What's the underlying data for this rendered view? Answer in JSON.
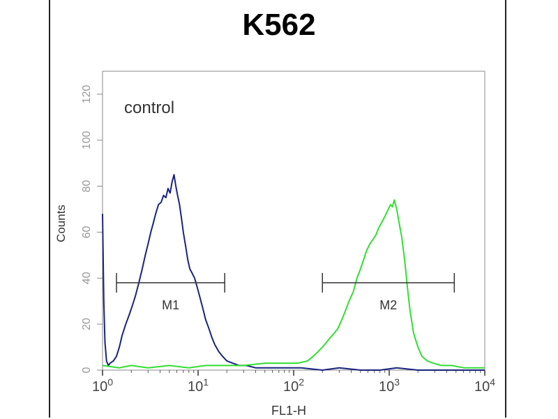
{
  "chart_data": {
    "type": "line",
    "title": "K562",
    "xlabel": "FL1-H",
    "ylabel": "Counts",
    "x_scale": "log",
    "xlim": [
      1,
      10000
    ],
    "ylim": [
      0,
      130
    ],
    "x_ticks": [
      {
        "value": 1,
        "base": "10",
        "exp": "0"
      },
      {
        "value": 10,
        "base": "10",
        "exp": "1"
      },
      {
        "value": 100,
        "base": "10",
        "exp": "2"
      },
      {
        "value": 1000,
        "base": "10",
        "exp": "3"
      },
      {
        "value": 10000,
        "base": "10",
        "exp": "4"
      }
    ],
    "y_ticks": [
      0,
      20,
      40,
      60,
      80,
      100,
      120
    ],
    "annotations": [
      {
        "text": "control"
      }
    ],
    "gates": [
      {
        "label": "M1",
        "x_start": 1.4,
        "x_end": 19,
        "y": 38
      },
      {
        "label": "M2",
        "x_start": 200,
        "x_end": 4800,
        "y": 38
      }
    ],
    "series": [
      {
        "color": "#1a237e",
        "x": [
          1,
          1.03,
          1.06,
          1.1,
          1.15,
          1.2,
          1.3,
          1.4,
          1.5,
          1.6,
          1.75,
          1.9,
          2.05,
          2.2,
          2.4,
          2.6,
          2.8,
          3.0,
          3.2,
          3.4,
          3.6,
          3.85,
          4.1,
          4.35,
          4.6,
          4.85,
          5.1,
          5.35,
          5.6,
          5.85,
          6.1,
          6.4,
          6.7,
          7.0,
          7.4,
          7.8,
          8.2,
          8.7,
          9.2,
          9.8,
          10.4,
          11.2,
          12,
          13,
          14,
          15,
          16.5,
          18,
          20,
          23,
          27,
          32,
          40,
          55,
          80,
          120,
          200,
          300,
          500,
          800,
          1200,
          2000,
          3000,
          5000,
          10000
        ],
        "y": [
          68,
          30,
          12,
          4,
          2,
          3,
          4,
          6,
          10,
          15,
          20,
          24,
          28,
          32,
          38,
          44,
          50,
          55,
          60,
          64,
          68,
          72,
          73,
          76,
          75,
          79,
          77,
          82,
          85,
          80,
          76,
          72,
          66,
          60,
          54,
          48,
          44,
          42,
          40,
          36,
          32,
          27,
          22,
          18,
          14,
          11,
          8,
          6,
          4,
          3,
          2,
          2,
          1,
          1,
          1,
          1,
          0,
          1,
          0,
          0,
          1,
          0,
          0,
          0,
          0
        ]
      },
      {
        "color": "#33dd33",
        "x": [
          1,
          1.5,
          2,
          3,
          5,
          8,
          12,
          20,
          30,
          50,
          80,
          110,
          140,
          160,
          180,
          200,
          220,
          240,
          265,
          290,
          320,
          350,
          380,
          420,
          460,
          500,
          540,
          580,
          630,
          680,
          730,
          780,
          830,
          880,
          930,
          980,
          1030,
          1080,
          1130,
          1200,
          1270,
          1350,
          1450,
          1550,
          1650,
          1800,
          2000,
          2200,
          2500,
          2900,
          3500,
          4500,
          6000,
          10000
        ],
        "y": [
          2,
          1,
          2,
          1,
          2,
          1,
          2,
          2,
          2,
          3,
          3,
          3,
          4,
          6,
          8,
          10,
          12,
          14,
          16,
          18,
          22,
          26,
          30,
          34,
          40,
          44,
          48,
          52,
          55,
          57,
          59,
          62,
          64,
          66,
          68,
          70,
          72,
          71,
          74,
          70,
          64,
          58,
          48,
          36,
          26,
          16,
          10,
          6,
          4,
          3,
          2,
          2,
          1,
          1
        ]
      }
    ]
  }
}
